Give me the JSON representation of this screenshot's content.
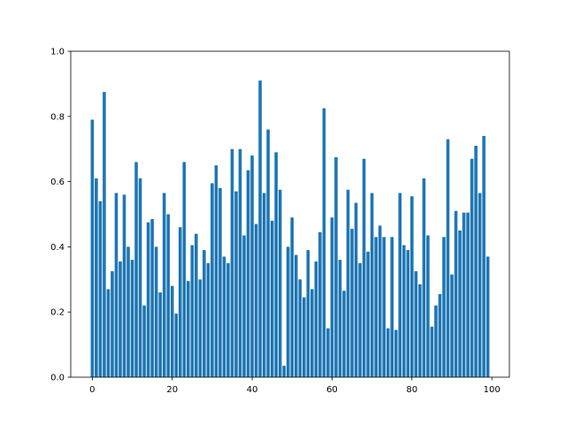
{
  "chart_data": {
    "type": "bar",
    "x": [
      0,
      1,
      2,
      3,
      4,
      5,
      6,
      7,
      8,
      9,
      10,
      11,
      12,
      13,
      14,
      15,
      16,
      17,
      18,
      19,
      20,
      21,
      22,
      23,
      24,
      25,
      26,
      27,
      28,
      29,
      30,
      31,
      32,
      33,
      34,
      35,
      36,
      37,
      38,
      39,
      40,
      41,
      42,
      43,
      44,
      45,
      46,
      47,
      48,
      49,
      50,
      51,
      52,
      53,
      54,
      55,
      56,
      57,
      58,
      59,
      60,
      61,
      62,
      63,
      64,
      65,
      66,
      67,
      68,
      69,
      70,
      71,
      72,
      73,
      74,
      75,
      76,
      77,
      78,
      79,
      80,
      81,
      82,
      83,
      84,
      85,
      86,
      87,
      88,
      89,
      90,
      91,
      92,
      93,
      94,
      95,
      96,
      97,
      98,
      99
    ],
    "values": [
      0.79,
      0.61,
      0.54,
      0.875,
      0.27,
      0.325,
      0.565,
      0.355,
      0.56,
      0.4,
      0.36,
      0.66,
      0.61,
      0.22,
      0.475,
      0.485,
      0.4,
      0.26,
      0.565,
      0.5,
      0.28,
      0.195,
      0.46,
      0.66,
      0.295,
      0.405,
      0.44,
      0.3,
      0.39,
      0.35,
      0.595,
      0.65,
      0.58,
      0.37,
      0.35,
      0.7,
      0.57,
      0.7,
      0.435,
      0.635,
      0.68,
      0.47,
      0.91,
      0.565,
      0.76,
      0.48,
      0.69,
      0.575,
      0.035,
      0.4,
      0.49,
      0.375,
      0.3,
      0.245,
      0.39,
      0.27,
      0.355,
      0.445,
      0.825,
      0.15,
      0.49,
      0.675,
      0.36,
      0.265,
      0.575,
      0.455,
      0.535,
      0.35,
      0.67,
      0.385,
      0.565,
      0.43,
      0.465,
      0.43,
      0.15,
      0.43,
      0.145,
      0.565,
      0.405,
      0.39,
      0.555,
      0.325,
      0.285,
      0.61,
      0.435,
      0.155,
      0.22,
      0.255,
      0.43,
      0.73,
      0.315,
      0.51,
      0.45,
      0.505,
      0.505,
      0.67,
      0.71,
      0.565,
      0.74,
      0.37
    ],
    "color": "#1f77b4",
    "xlim": [
      -5.39,
      104.39
    ],
    "xticks": [
      0,
      20,
      40,
      60,
      80,
      100
    ],
    "ylim": [
      0,
      1
    ],
    "yticks": [
      {
        "value": 0,
        "label": "0.0"
      },
      0.2,
      0.4,
      0.6,
      0.8,
      {
        "value": 1,
        "label": "1.0"
      }
    ]
  }
}
